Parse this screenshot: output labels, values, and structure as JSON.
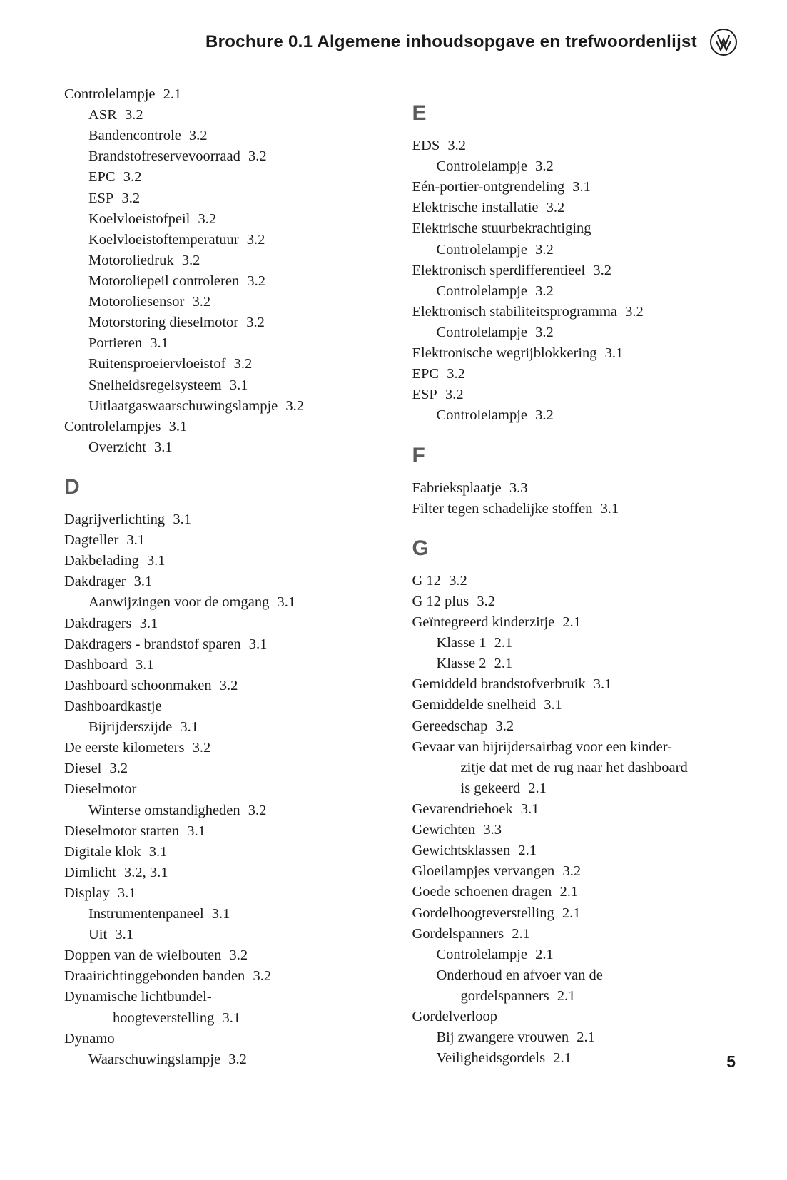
{
  "header": {
    "title": "Brochure 0.1  Algemene inhoudsopgave en trefwoordenlijst"
  },
  "page_number": "5",
  "typography": {
    "body_font": "serif",
    "heading_font": "sans-serif",
    "body_size_pt": 15,
    "letter_size_pt": 22,
    "letter_color": "#5a5a5a",
    "text_color": "#1a1a1a",
    "background_color": "#ffffff"
  },
  "left": {
    "cont": [
      {
        "t": "Controlelampje",
        "r": "2.1",
        "lvl": 0
      },
      {
        "t": "ASR",
        "r": "3.2",
        "lvl": 1
      },
      {
        "t": "Bandencontrole",
        "r": "3.2",
        "lvl": 1
      },
      {
        "t": "Brandstofreservevoorraad",
        "r": "3.2",
        "lvl": 1
      },
      {
        "t": "EPC",
        "r": "3.2",
        "lvl": 1
      },
      {
        "t": "ESP",
        "r": "3.2",
        "lvl": 1
      },
      {
        "t": "Koelvloeistofpeil",
        "r": "3.2",
        "lvl": 1
      },
      {
        "t": "Koelvloeistoftemperatuur",
        "r": "3.2",
        "lvl": 1
      },
      {
        "t": "Motoroliedruk",
        "r": "3.2",
        "lvl": 1
      },
      {
        "t": "Motoroliepeil controleren",
        "r": "3.2",
        "lvl": 1
      },
      {
        "t": "Motoroliesensor",
        "r": "3.2",
        "lvl": 1
      },
      {
        "t": "Motorstoring dieselmotor",
        "r": "3.2",
        "lvl": 1
      },
      {
        "t": "Portieren",
        "r": "3.1",
        "lvl": 1
      },
      {
        "t": "Ruitensproeiervloeistof",
        "r": "3.2",
        "lvl": 1
      },
      {
        "t": "Snelheidsregelsysteem",
        "r": "3.1",
        "lvl": 1
      },
      {
        "t": "Uitlaatgaswaarschuwingslampje",
        "r": "3.2",
        "lvl": 1
      },
      {
        "t": "Controlelampjes",
        "r": "3.1",
        "lvl": 0
      },
      {
        "t": "Overzicht",
        "r": "3.1",
        "lvl": 1
      }
    ],
    "D": [
      {
        "t": "Dagrijverlichting",
        "r": "3.1",
        "lvl": 0
      },
      {
        "t": "Dagteller",
        "r": "3.1",
        "lvl": 0
      },
      {
        "t": "Dakbelading",
        "r": "3.1",
        "lvl": 0
      },
      {
        "t": "Dakdrager",
        "r": "3.1",
        "lvl": 0
      },
      {
        "t": "Aanwijzingen voor de omgang",
        "r": "3.1",
        "lvl": 1
      },
      {
        "t": "Dakdragers",
        "r": "3.1",
        "lvl": 0
      },
      {
        "t": "Dakdragers - brandstof sparen",
        "r": "3.1",
        "lvl": 0
      },
      {
        "t": "Dashboard",
        "r": "3.1",
        "lvl": 0
      },
      {
        "t": "Dashboard schoonmaken",
        "r": "3.2",
        "lvl": 0
      },
      {
        "t": "Dashboardkastje",
        "r": "",
        "lvl": 0
      },
      {
        "t": "Bijrijderszijde",
        "r": "3.1",
        "lvl": 1
      },
      {
        "t": "De eerste kilometers",
        "r": "3.2",
        "lvl": 0
      },
      {
        "t": "Diesel",
        "r": "3.2",
        "lvl": 0
      },
      {
        "t": "Dieselmotor",
        "r": "",
        "lvl": 0
      },
      {
        "t": "Winterse omstandigheden",
        "r": "3.2",
        "lvl": 1
      },
      {
        "t": "Dieselmotor starten",
        "r": "3.1",
        "lvl": 0
      },
      {
        "t": "Digitale klok",
        "r": "3.1",
        "lvl": 0
      },
      {
        "t": "Dimlicht",
        "r": "3.2, 3.1",
        "lvl": 0
      },
      {
        "t": "Display",
        "r": "3.1",
        "lvl": 0
      },
      {
        "t": "Instrumentenpaneel",
        "r": "3.1",
        "lvl": 1
      },
      {
        "t": "Uit",
        "r": "3.1",
        "lvl": 1
      },
      {
        "t": "Doppen van de wielbouten",
        "r": "3.2",
        "lvl": 0
      },
      {
        "t": "Draairichtinggebonden banden",
        "r": "3.2",
        "lvl": 0
      },
      {
        "t": "Dynamische lichtbundel-",
        "r": "",
        "lvl": 0
      },
      {
        "t": "hoogteverstelling",
        "r": "3.1",
        "lvl": 2,
        "wrap": true
      },
      {
        "t": "Dynamo",
        "r": "",
        "lvl": 0
      },
      {
        "t": "Waarschuwingslampje",
        "r": "3.2",
        "lvl": 1
      }
    ]
  },
  "right": {
    "E": [
      {
        "t": "EDS",
        "r": "3.2",
        "lvl": 0
      },
      {
        "t": "Controlelampje",
        "r": "3.2",
        "lvl": 1
      },
      {
        "t": "Eén-portier-ontgrendeling",
        "r": "3.1",
        "lvl": 0
      },
      {
        "t": "Elektrische installatie",
        "r": "3.2",
        "lvl": 0
      },
      {
        "t": "Elektrische stuurbekrachtiging",
        "r": "",
        "lvl": 0
      },
      {
        "t": "Controlelampje",
        "r": "3.2",
        "lvl": 1
      },
      {
        "t": "Elektronisch sperdifferentieel",
        "r": "3.2",
        "lvl": 0
      },
      {
        "t": "Controlelampje",
        "r": "3.2",
        "lvl": 1
      },
      {
        "t": "Elektronisch stabiliteitsprogramma",
        "r": "3.2",
        "lvl": 0
      },
      {
        "t": "Controlelampje",
        "r": "3.2",
        "lvl": 1
      },
      {
        "t": "Elektronische wegrijblokkering",
        "r": "3.1",
        "lvl": 0
      },
      {
        "t": "EPC",
        "r": "3.2",
        "lvl": 0
      },
      {
        "t": "ESP",
        "r": "3.2",
        "lvl": 0
      },
      {
        "t": "Controlelampje",
        "r": "3.2",
        "lvl": 1
      }
    ],
    "F": [
      {
        "t": "Fabrieksplaatje",
        "r": "3.3",
        "lvl": 0
      },
      {
        "t": "Filter tegen schadelijke stoffen",
        "r": "3.1",
        "lvl": 0
      }
    ],
    "G": [
      {
        "t": "G 12",
        "r": "3.2",
        "lvl": 0
      },
      {
        "t": "G 12 plus",
        "r": "3.2",
        "lvl": 0
      },
      {
        "t": "Geïntegreerd kinderzitje",
        "r": "2.1",
        "lvl": 0
      },
      {
        "t": "Klasse 1",
        "r": "2.1",
        "lvl": 1
      },
      {
        "t": "Klasse 2",
        "r": "2.1",
        "lvl": 1
      },
      {
        "t": "Gemiddeld brandstofverbruik",
        "r": "3.1",
        "lvl": 0
      },
      {
        "t": "Gemiddelde snelheid",
        "r": "3.1",
        "lvl": 0
      },
      {
        "t": "Gereedschap",
        "r": "3.2",
        "lvl": 0
      },
      {
        "t": "Gevaar van bijrijdersairbag voor een kinder-",
        "r": "",
        "lvl": 0
      },
      {
        "t": "zitje dat met de rug naar het dashboard",
        "r": "",
        "lvl": 2,
        "wrap": true
      },
      {
        "t": "is gekeerd",
        "r": "2.1",
        "lvl": 2,
        "wrap": true
      },
      {
        "t": "Gevarendriehoek",
        "r": "3.1",
        "lvl": 0
      },
      {
        "t": "Gewichten",
        "r": "3.3",
        "lvl": 0
      },
      {
        "t": "Gewichtsklassen",
        "r": "2.1",
        "lvl": 0
      },
      {
        "t": "Gloeilampjes vervangen",
        "r": "3.2",
        "lvl": 0
      },
      {
        "t": "Goede schoenen dragen",
        "r": "2.1",
        "lvl": 0
      },
      {
        "t": "Gordelhoogteverstelling",
        "r": "2.1",
        "lvl": 0
      },
      {
        "t": "Gordelspanners",
        "r": "2.1",
        "lvl": 0
      },
      {
        "t": "Controlelampje",
        "r": "2.1",
        "lvl": 1
      },
      {
        "t": "Onderhoud en afvoer van de",
        "r": "",
        "lvl": 1
      },
      {
        "t": "gordelspanners",
        "r": "2.1",
        "lvl": 2,
        "wrap": true
      },
      {
        "t": "Gordelverloop",
        "r": "",
        "lvl": 0
      },
      {
        "t": "Bij zwangere vrouwen",
        "r": "2.1",
        "lvl": 1
      },
      {
        "t": "Veiligheidsgordels",
        "r": "2.1",
        "lvl": 1
      }
    ]
  }
}
